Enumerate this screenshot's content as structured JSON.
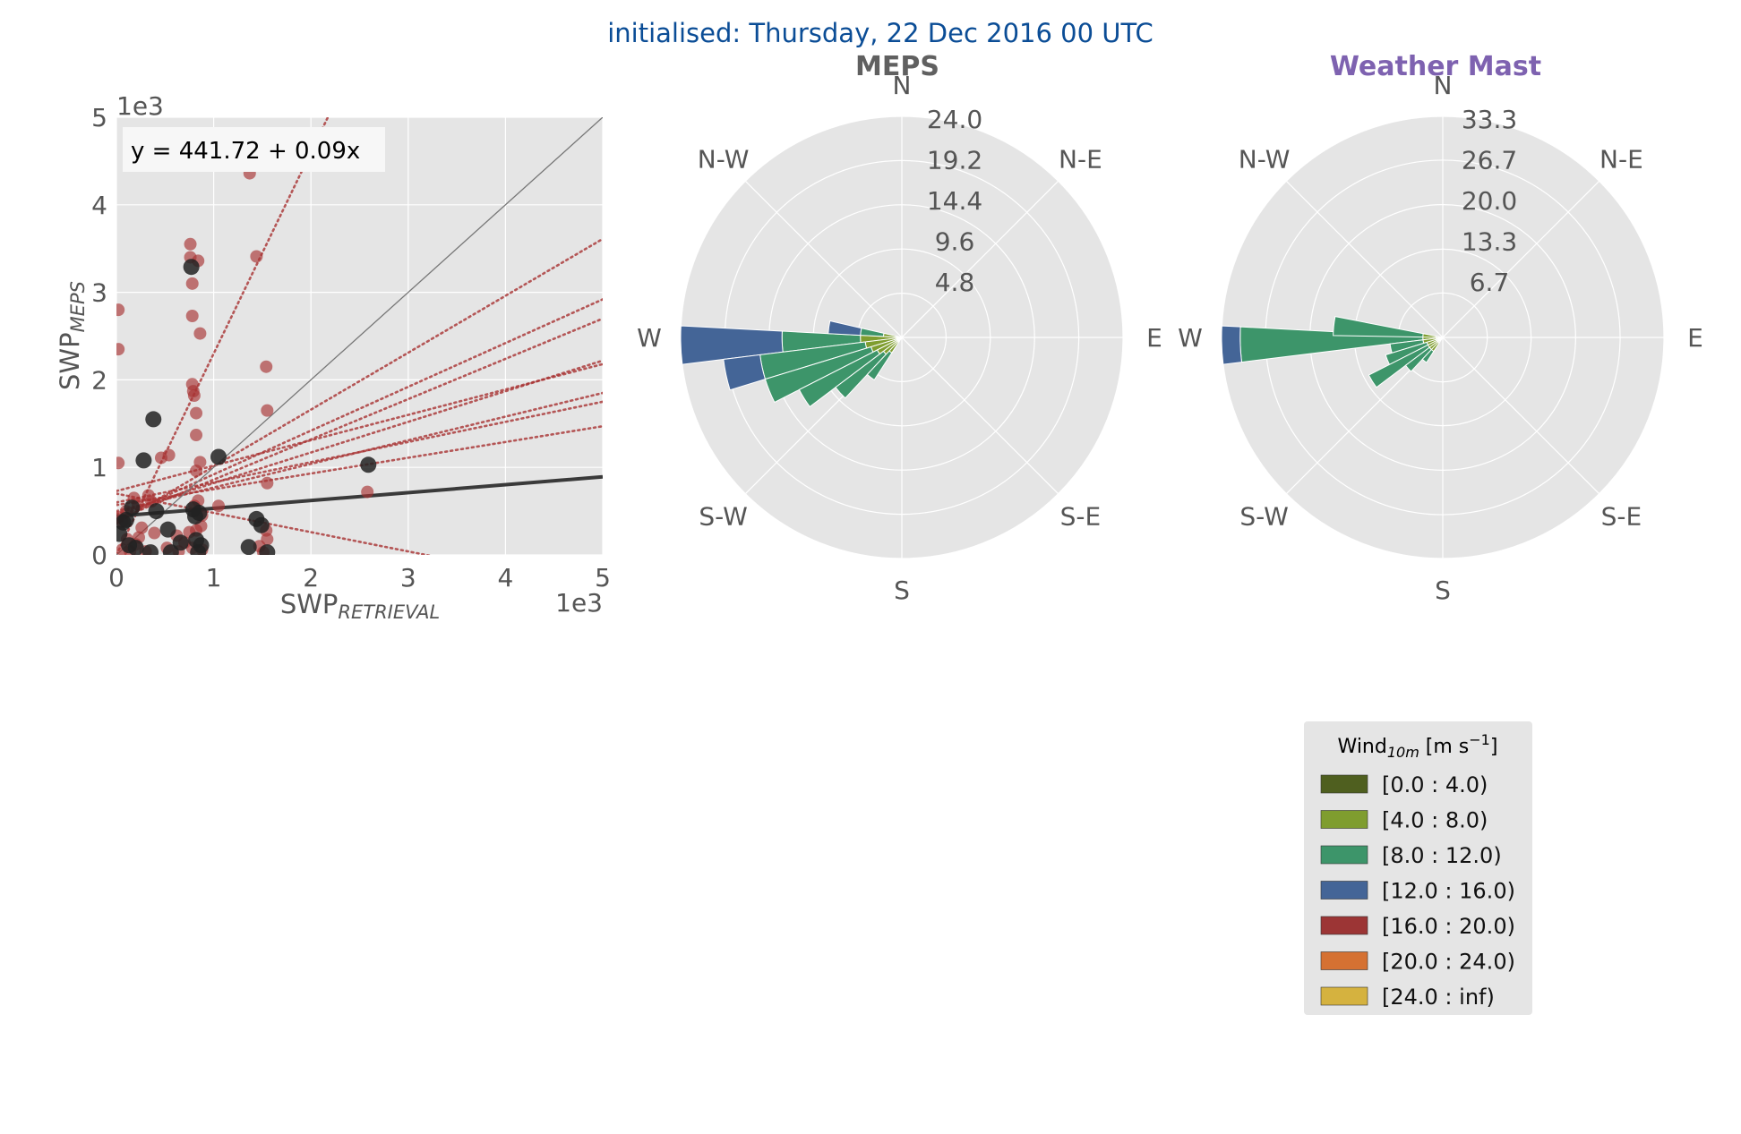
{
  "suptitle": "initialised: Thursday, 22 Dec 2016 00 UTC",
  "colors": {
    "suptitle": "#0b4d96",
    "meps_title": "#606060",
    "mast_title": "#7e62b0",
    "axes_bg": "#e5e5e5",
    "grid": "#ffffff",
    "tick_text": "#555555",
    "legend_bg": "#e5e5e5"
  },
  "chart_data": [
    {
      "type": "scatter",
      "xlabel": {
        "base": "SWP",
        "sub": "RETRIEVAL"
      },
      "ylabel": {
        "base": "SWP",
        "sub": "MEPS"
      },
      "xlim": [
        0,
        5000
      ],
      "ylim": [
        0,
        5000
      ],
      "xticks": [
        "0",
        "1",
        "2",
        "3",
        "4",
        "5"
      ],
      "yticks": [
        "0",
        "1",
        "2",
        "3",
        "4",
        "5"
      ],
      "x_offset_label": "1e3",
      "y_offset_label": "1e3",
      "grid": true,
      "annotation": "y = 441.72 + 0.09x",
      "reference_line": {
        "intercept": 0,
        "slope": 1,
        "color": "#777777"
      },
      "main_fit": {
        "intercept": 441.72,
        "slope": 0.09,
        "color": "#3a3a3a"
      },
      "member_fits": [
        {
          "intercept": 0,
          "slope": 2.3
        },
        {
          "intercept": 360,
          "slope": 0.65
        },
        {
          "intercept": 420,
          "slope": 0.5
        },
        {
          "intercept": 400,
          "slope": 0.46
        },
        {
          "intercept": 730,
          "slope": 0.29
        },
        {
          "intercept": 470,
          "slope": 0.35
        },
        {
          "intercept": 500,
          "slope": 0.27
        },
        {
          "intercept": 600,
          "slope": 0.23
        },
        {
          "intercept": 570,
          "slope": 0.18
        },
        {
          "intercept": 700,
          "slope": -0.22
        }
      ],
      "series": [
        {
          "role": "ensemble members",
          "color": "#a83232",
          "points": [
            [
              20,
              2800
            ],
            [
              20,
              2350
            ],
            [
              20,
              1050
            ],
            [
              20,
              430
            ],
            [
              60,
              380
            ],
            [
              60,
              60
            ],
            [
              100,
              500
            ],
            [
              140,
              40
            ],
            [
              180,
              650
            ],
            [
              200,
              120
            ],
            [
              220,
              580
            ],
            [
              260,
              310
            ],
            [
              300,
              40
            ],
            [
              330,
              680
            ],
            [
              360,
              610
            ],
            [
              390,
              250
            ],
            [
              460,
              1110
            ],
            [
              540,
              1140
            ],
            [
              520,
              80
            ],
            [
              620,
              220
            ],
            [
              700,
              140
            ],
            [
              760,
              3550
            ],
            [
              780,
              3100
            ],
            [
              780,
              2730
            ],
            [
              780,
              1950
            ],
            [
              790,
              1870
            ],
            [
              800,
              1820
            ],
            [
              820,
              1620
            ],
            [
              820,
              1370
            ],
            [
              840,
              3360
            ],
            [
              760,
              3400
            ],
            [
              860,
              2530
            ],
            [
              860,
              1060
            ],
            [
              820,
              960
            ],
            [
              840,
              620
            ],
            [
              800,
              560
            ],
            [
              880,
              450
            ],
            [
              870,
              330
            ],
            [
              820,
              280
            ],
            [
              750,
              260
            ],
            [
              780,
              80
            ],
            [
              880,
              60
            ],
            [
              1050,
              560
            ],
            [
              1370,
              4360
            ],
            [
              1440,
              3410
            ],
            [
              1540,
              2150
            ],
            [
              1550,
              1650
            ],
            [
              1550,
              820
            ],
            [
              1540,
              280
            ],
            [
              1550,
              180
            ],
            [
              1470,
              100
            ],
            [
              1510,
              30
            ],
            [
              2580,
              720
            ],
            [
              640,
              40
            ],
            [
              230,
              200
            ],
            [
              110,
              180
            ]
          ]
        },
        {
          "role": "ensemble mean",
          "color": "#222222",
          "points": [
            [
              30,
              240
            ],
            [
              100,
              400
            ],
            [
              130,
              110
            ],
            [
              160,
              540
            ],
            [
              280,
              1080
            ],
            [
              350,
              30
            ],
            [
              380,
              1550
            ],
            [
              410,
              500
            ],
            [
              530,
              290
            ],
            [
              560,
              30
            ],
            [
              660,
              140
            ],
            [
              770,
              3290
            ],
            [
              790,
              520
            ],
            [
              810,
              440
            ],
            [
              820,
              170
            ],
            [
              840,
              30
            ],
            [
              850,
              480
            ],
            [
              870,
              110
            ],
            [
              1050,
              1120
            ],
            [
              1360,
              90
            ],
            [
              1440,
              410
            ],
            [
              1490,
              340
            ],
            [
              1550,
              30
            ],
            [
              2590,
              1030
            ],
            [
              200,
              80
            ],
            [
              70,
              370
            ]
          ]
        }
      ]
    },
    {
      "type": "windrose",
      "title": "MEPS",
      "directions": [
        "N",
        "N-E",
        "E",
        "S-E",
        "S",
        "S-W",
        "W",
        "N-W"
      ],
      "radial_max": 24.0,
      "radial_ticks": [
        "4.8",
        "9.6",
        "14.4",
        "19.2",
        "24.0"
      ],
      "radial_values": [
        4.8,
        9.6,
        14.4,
        19.2,
        24.0
      ],
      "bins": [
        {
          "dir": 268,
          "segments": [
            [
              0,
              0.5
            ],
            [
              0.5,
              4.5
            ],
            [
              4.5,
              13.0
            ],
            [
              13.0,
              24.0
            ]
          ]
        },
        {
          "dir": 258,
          "segments": [
            [
              0,
              0.5
            ],
            [
              0.5,
              4.0
            ],
            [
              4.0,
              15.5
            ],
            [
              15.5,
              19.5
            ]
          ]
        },
        {
          "dir": 248,
          "segments": [
            [
              0,
              0.5
            ],
            [
              0.5,
              3.5
            ],
            [
              3.5,
              15.5
            ]
          ]
        },
        {
          "dir": 238,
          "segments": [
            [
              0,
              0.5
            ],
            [
              0.5,
              3.0
            ],
            [
              3.0,
              12.5
            ]
          ]
        },
        {
          "dir": 228,
          "segments": [
            [
              0,
              0.5
            ],
            [
              0.5,
              2.5
            ],
            [
              2.5,
              9.0
            ]
          ]
        },
        {
          "dir": 218,
          "segments": [
            [
              0,
              0.5
            ],
            [
              0.5,
              2.0
            ],
            [
              2.0,
              5.5
            ]
          ]
        },
        {
          "dir": 278,
          "segments": [
            [
              0,
              0.5
            ],
            [
              0.5,
              2.0
            ],
            [
              2.0,
              4.5
            ],
            [
              4.5,
              8.0
            ]
          ]
        }
      ]
    },
    {
      "type": "windrose",
      "title": "Weather Mast",
      "directions": [
        "N",
        "N-E",
        "E",
        "S-E",
        "S",
        "S-W",
        "W",
        "N-W"
      ],
      "radial_max": 33.3,
      "radial_ticks": [
        "6.7",
        "13.3",
        "20.0",
        "26.7",
        "33.3"
      ],
      "radial_values": [
        6.7,
        13.3,
        20.0,
        26.7,
        33.3
      ],
      "bins": [
        {
          "dir": 268,
          "segments": [
            [
              0,
              1.0
            ],
            [
              1.0,
              3.0
            ],
            [
              3.0,
              30.5
            ],
            [
              30.5,
              33.3
            ]
          ]
        },
        {
          "dir": 276,
          "segments": [
            [
              0,
              1.0
            ],
            [
              1.0,
              3.0
            ],
            [
              3.0,
              16.5
            ]
          ]
        },
        {
          "dir": 258,
          "segments": [
            [
              0,
              1.0
            ],
            [
              1.0,
              3.0
            ],
            [
              3.0,
              8.0
            ]
          ]
        },
        {
          "dir": 248,
          "segments": [
            [
              0,
              1.0
            ],
            [
              1.0,
              2.5
            ],
            [
              2.5,
              9.0
            ]
          ]
        },
        {
          "dir": 238,
          "segments": [
            [
              0,
              1.0
            ],
            [
              1.0,
              2.5
            ],
            [
              2.5,
              12.5
            ]
          ]
        },
        {
          "dir": 228,
          "segments": [
            [
              0,
              1.0
            ],
            [
              1.0,
              2.5
            ],
            [
              2.5,
              7.0
            ]
          ]
        },
        {
          "dir": 218,
          "segments": [
            [
              0,
              1.0
            ],
            [
              1.0,
              2.5
            ],
            [
              2.5,
              4.5
            ]
          ]
        }
      ]
    }
  ],
  "legend": {
    "title_base": "Wind",
    "title_sub": "10m",
    "title_unit_pre": " [m s",
    "title_sup": "−1",
    "title_unit_post": "]",
    "placement": "bottom-right",
    "items": [
      {
        "label": "[0.0 : 4.0)",
        "color": "#4f5f1f"
      },
      {
        "label": "[4.0 : 8.0)",
        "color": "#7f9d2f"
      },
      {
        "label": "[8.0 : 12.0)",
        "color": "#3d956a"
      },
      {
        "label": "[12.0 : 16.0)",
        "color": "#446597"
      },
      {
        "label": "[16.0 : 20.0)",
        "color": "#9c3535"
      },
      {
        "label": "[20.0 : 24.0)",
        "color": "#d57132"
      },
      {
        "label": "[24.0 : inf)",
        "color": "#d5b23f"
      }
    ]
  }
}
